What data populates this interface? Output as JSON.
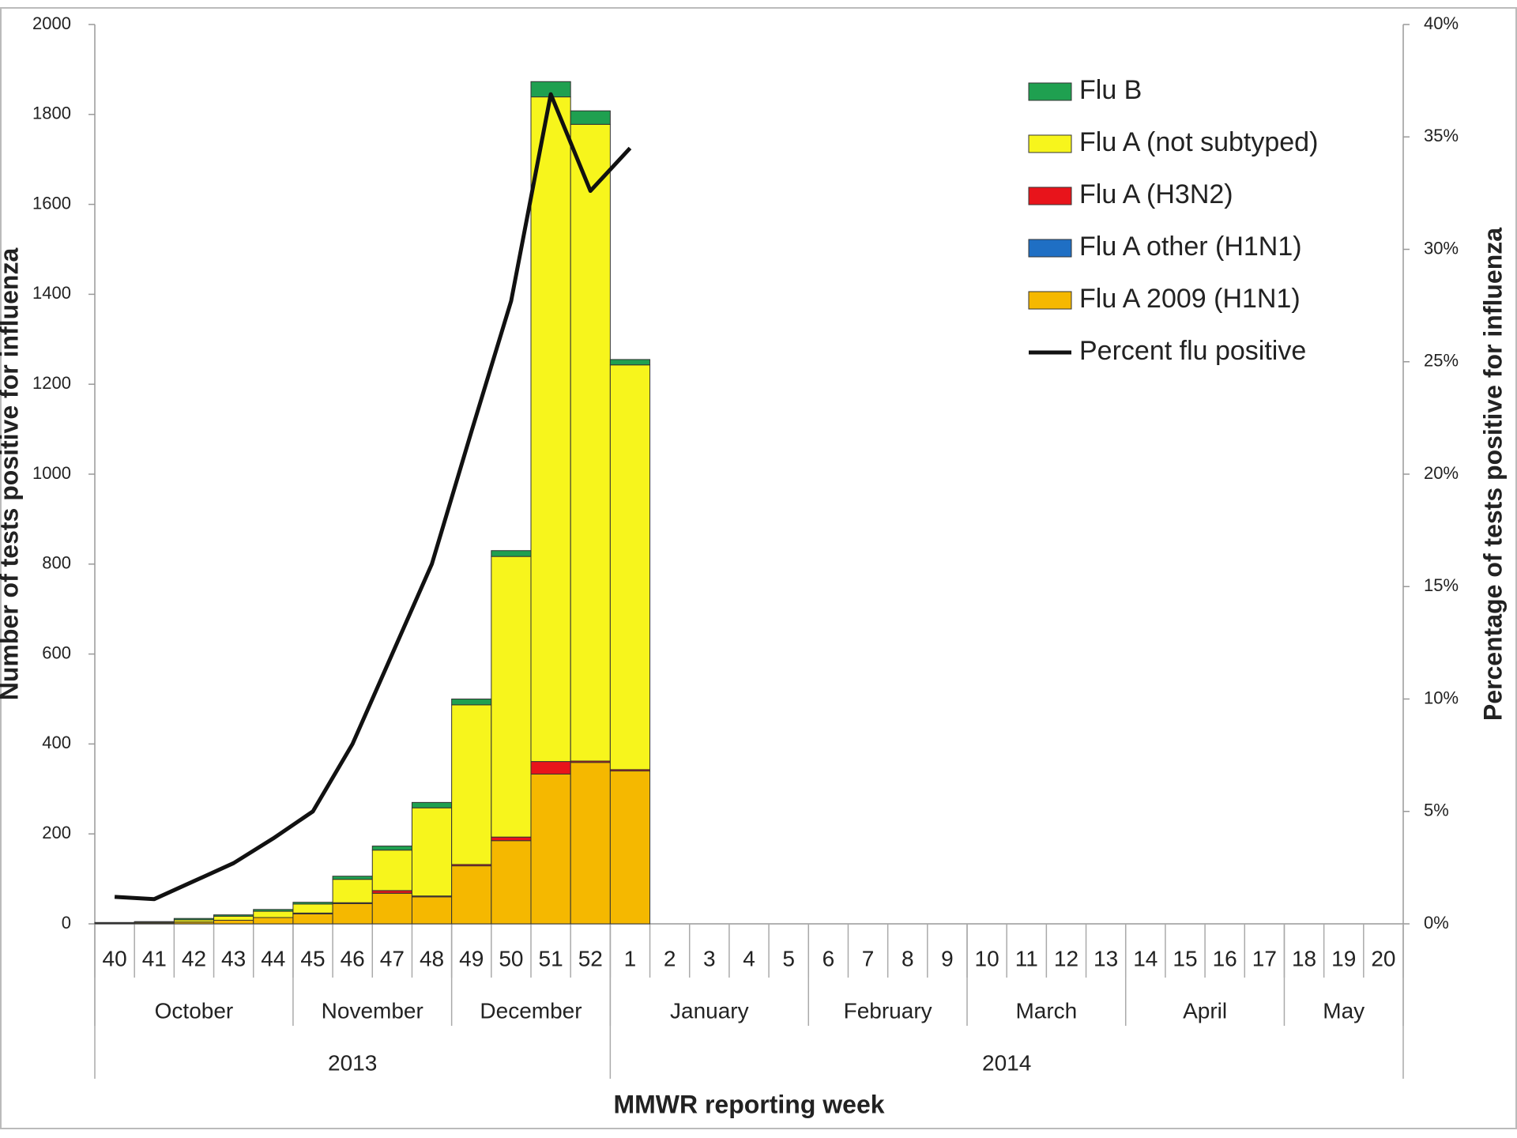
{
  "chart_data": {
    "type": "bar",
    "stacked": true,
    "y_label": "Number of tests positive for influenza",
    "y2_label": "Percentage of tests positive for influenza",
    "x_label": "MMWR reporting week",
    "categories": [
      "40",
      "41",
      "42",
      "43",
      "44",
      "45",
      "46",
      "47",
      "48",
      "49",
      "50",
      "51",
      "52",
      "1",
      "2",
      "3",
      "4",
      "5",
      "6",
      "7",
      "8",
      "9",
      "10",
      "11",
      "12",
      "13",
      "14",
      "15",
      "16",
      "17",
      "18",
      "19",
      "20"
    ],
    "month_groups": [
      {
        "label": "October",
        "span": 5
      },
      {
        "label": "November",
        "span": 4
      },
      {
        "label": "December",
        "span": 4
      },
      {
        "label": "January",
        "span": 5
      },
      {
        "label": "February",
        "span": 4
      },
      {
        "label": "March",
        "span": 4
      },
      {
        "label": "April",
        "span": 4
      },
      {
        "label": "May",
        "span": 3
      }
    ],
    "year_groups": [
      {
        "label": "2013",
        "span": 13
      },
      {
        "label": "2014",
        "span": 20
      }
    ],
    "series": [
      {
        "name": "Flu A 2009 (H1N1)",
        "color": "#f5b800",
        "values": [
          1,
          2,
          4,
          8,
          14,
          22,
          45,
          68,
          60,
          129,
          185,
          333,
          359,
          340,
          null,
          null,
          null,
          null,
          null,
          null,
          null,
          null,
          null,
          null,
          null,
          null,
          null,
          null,
          null,
          null,
          null,
          null,
          null
        ]
      },
      {
        "name": "Flu A other (H1N1)",
        "color": "#1f6fc4",
        "values": [
          0,
          0,
          0,
          0,
          0,
          0,
          0,
          0,
          0,
          0,
          0,
          0,
          0,
          0,
          null,
          null,
          null,
          null,
          null,
          null,
          null,
          null,
          null,
          null,
          null,
          null,
          null,
          null,
          null,
          null,
          null,
          null,
          null
        ]
      },
      {
        "name": "Flu A (H3N2)",
        "color": "#e8141b",
        "values": [
          0,
          0,
          0,
          0,
          0,
          2,
          2,
          6,
          2,
          3,
          8,
          28,
          3,
          3,
          null,
          null,
          null,
          null,
          null,
          null,
          null,
          null,
          null,
          null,
          null,
          null,
          null,
          null,
          null,
          null,
          null,
          null,
          null
        ]
      },
      {
        "name": "Flu A (not subtyped)",
        "color": "#f7f51c",
        "values": [
          1,
          2,
          5,
          9,
          14,
          20,
          52,
          90,
          196,
          355,
          624,
          1478,
          1416,
          900,
          null,
          null,
          null,
          null,
          null,
          null,
          null,
          null,
          null,
          null,
          null,
          null,
          null,
          null,
          null,
          null,
          null,
          null,
          null
        ]
      },
      {
        "name": "Flu B",
        "color": "#1fa050",
        "values": [
          1,
          1,
          3,
          3,
          4,
          4,
          7,
          9,
          12,
          13,
          13,
          34,
          30,
          12,
          null,
          null,
          null,
          null,
          null,
          null,
          null,
          null,
          null,
          null,
          null,
          null,
          null,
          null,
          null,
          null,
          null,
          null,
          null
        ]
      },
      {
        "name": "Percent flu positive",
        "color": "#111111",
        "type": "line",
        "axis": "y2",
        "values": [
          1.2,
          1.1,
          1.9,
          2.7,
          3.8,
          5.0,
          8.0,
          12.0,
          16.0,
          21.9,
          27.7,
          36.9,
          32.6,
          34.5,
          null,
          null,
          null,
          null,
          null,
          null,
          null,
          null,
          null,
          null,
          null,
          null,
          null,
          null,
          null,
          null,
          null,
          null,
          null
        ]
      }
    ],
    "ylim": [
      0,
      2000
    ],
    "yticks": [
      0,
      200,
      400,
      600,
      800,
      1000,
      1200,
      1400,
      1600,
      1800,
      2000
    ],
    "y2lim": [
      0,
      40
    ],
    "y2ticks": [
      {
        "value": 0,
        "label": "0%"
      },
      {
        "value": 5,
        "label": "5%"
      },
      {
        "value": 10,
        "label": "10%"
      },
      {
        "value": 15,
        "label": "15%"
      },
      {
        "value": 20,
        "label": "20%"
      },
      {
        "value": 25,
        "label": "25%"
      },
      {
        "value": 30,
        "label": "30%"
      },
      {
        "value": 35,
        "label": "35%"
      },
      {
        "value": 40,
        "label": "40%"
      }
    ],
    "grid": false,
    "legend": "top-right"
  }
}
